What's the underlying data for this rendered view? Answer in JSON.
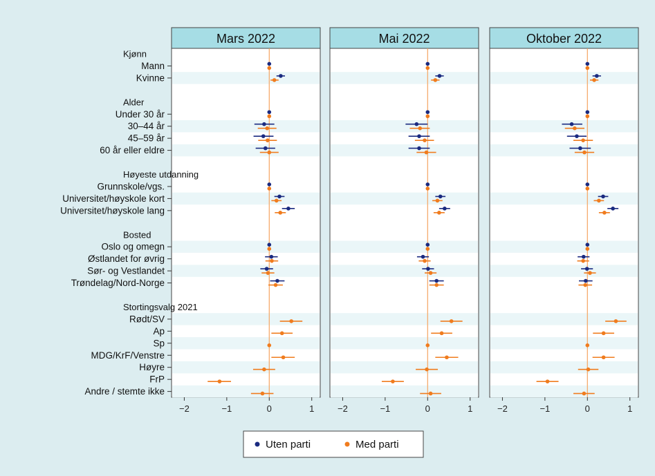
{
  "colors": {
    "background": "#dcedf0",
    "plot_bg": "#ffffff",
    "header_bg": "#a6dde5",
    "band": "#eaf6f8",
    "uten_parti": "#1a2a80",
    "med_parti": "#f07c1e",
    "zero_line": "#f5a460"
  },
  "chart_data": {
    "type": "scatter",
    "subtype": "coefficient-plot",
    "panels": [
      "Mars 2022",
      "Mai 2022",
      "Oktober 2022"
    ],
    "xlim": [
      -2.3,
      1.2
    ],
    "xticks": [
      -2,
      -1,
      0,
      1
    ],
    "xtick_labels": [
      "−2",
      "−1",
      "0",
      "1"
    ],
    "grid": false,
    "legend_position": "bottom",
    "legend": [
      "Uten parti",
      "Med parti"
    ],
    "rows": [
      {
        "label": "Kjønn",
        "kind": "header"
      },
      {
        "label": "Mann",
        "kind": "item"
      },
      {
        "label": "Kvinne",
        "kind": "item"
      },
      {
        "label": "",
        "kind": "gap"
      },
      {
        "label": "Alder",
        "kind": "header"
      },
      {
        "label": "Under 30 år",
        "kind": "item"
      },
      {
        "label": "30–44 år",
        "kind": "item"
      },
      {
        "label": "45–59 år",
        "kind": "item"
      },
      {
        "label": "60 år eller eldre",
        "kind": "item"
      },
      {
        "label": "",
        "kind": "gap"
      },
      {
        "label": "Høyeste utdanning",
        "kind": "header"
      },
      {
        "label": "Grunnskole/vgs.",
        "kind": "item"
      },
      {
        "label": "Universitet/høyskole kort",
        "kind": "item"
      },
      {
        "label": "Universitet/høyskole lang",
        "kind": "item"
      },
      {
        "label": "",
        "kind": "gap"
      },
      {
        "label": "Bosted",
        "kind": "header"
      },
      {
        "label": "Oslo og omegn",
        "kind": "item"
      },
      {
        "label": "Østlandet for øvrig",
        "kind": "item"
      },
      {
        "label": "Sør- og Vestlandet",
        "kind": "item"
      },
      {
        "label": "Trøndelag/Nord-Norge",
        "kind": "item"
      },
      {
        "label": "",
        "kind": "gap"
      },
      {
        "label": "Stortingsvalg 2021",
        "kind": "header"
      },
      {
        "label": "Rødt/SV",
        "kind": "item"
      },
      {
        "label": "Ap",
        "kind": "item"
      },
      {
        "label": "Sp",
        "kind": "item"
      },
      {
        "label": "MDG/KrF/Venstre",
        "kind": "item"
      },
      {
        "label": "Høyre",
        "kind": "item"
      },
      {
        "label": "FrP",
        "kind": "item"
      },
      {
        "label": "Andre / stemte ikke",
        "kind": "item"
      }
    ],
    "series": [
      {
        "name": "Uten parti",
        "panels": [
          {
            "Mann": [
              0,
              0,
              0
            ],
            "Kvinne": [
              0.27,
              0.17,
              0.37
            ],
            "Under 30 år": [
              0,
              0,
              0
            ],
            "30–44 år": [
              -0.12,
              -0.35,
              0.12
            ],
            "45–59 år": [
              -0.14,
              -0.37,
              0.1
            ],
            "60 år eller eldre": [
              -0.09,
              -0.32,
              0.14
            ],
            "Grunnskole/vgs.": [
              0,
              0,
              0
            ],
            "Universitet/høyskole kort": [
              0.24,
              0.12,
              0.36
            ],
            "Universitet/høyskole lang": [
              0.45,
              0.3,
              0.6
            ]
          },
          {
            "Mann": [
              0,
              0,
              0
            ],
            "Kvinne": [
              0.28,
              0.18,
              0.38
            ],
            "Under 30 år": [
              0,
              0,
              0
            ],
            "30–44 år": [
              -0.26,
              -0.52,
              0
            ],
            "45–59 år": [
              -0.2,
              -0.45,
              0.05
            ],
            "60 år eller eldre": [
              -0.2,
              -0.45,
              0.05
            ],
            "Grunnskole/vgs.": [
              0,
              0,
              0
            ],
            "Universitet/høyskole kort": [
              0.3,
              0.18,
              0.42
            ],
            "Universitet/høyskole lang": [
              0.4,
              0.27,
              0.53
            ]
          },
          {
            "Mann": [
              0,
              0,
              0
            ],
            "Kvinne": [
              0.22,
              0.12,
              0.32
            ],
            "Under 30 år": [
              0,
              0,
              0
            ],
            "30–44 år": [
              -0.37,
              -0.6,
              -0.12
            ],
            "45–59 år": [
              -0.25,
              -0.48,
              -0.02
            ],
            "60 år eller eldre": [
              -0.17,
              -0.42,
              0.08
            ],
            "Grunnskole/vgs.": [
              0,
              0,
              0
            ],
            "Universitet/høyskole kort": [
              0.37,
              0.25,
              0.49
            ],
            "Universitet/høyskole lang": [
              0.6,
              0.47,
              0.73
            ]
          }
        ]
      },
      {
        "name": "Med parti",
        "panels": [
          {
            "Mann": [
              0,
              0,
              0
            ],
            "Kvinne": [
              0.12,
              0.03,
              0.22
            ],
            "Under 30 år": [
              0,
              0,
              0
            ],
            "30–44 år": [
              -0.05,
              -0.27,
              0.17
            ],
            "45–59 år": [
              -0.04,
              -0.26,
              0.18
            ],
            "60 år eller eldre": [
              0,
              -0.22,
              0.22
            ],
            "Grunnskole/vgs.": [
              0,
              0,
              0
            ],
            "Universitet/høyskole kort": [
              0.17,
              0.05,
              0.29
            ],
            "Universitet/høyskole lang": [
              0.26,
              0.13,
              0.39
            ]
          },
          {
            "Mann": [
              0,
              0,
              0
            ],
            "Kvinne": [
              0.18,
              0.08,
              0.28
            ],
            "Under 30 år": [
              0,
              0,
              0
            ],
            "30–44 år": [
              -0.18,
              -0.42,
              0.05
            ],
            "45–59 år": [
              -0.07,
              -0.3,
              0.15
            ],
            "60 år eller eldre": [
              -0.03,
              -0.26,
              0.2
            ],
            "Grunnskole/vgs.": [
              0,
              0,
              0
            ],
            "Universitet/høyskole kort": [
              0.23,
              0.11,
              0.35
            ],
            "Universitet/høyskole lang": [
              0.27,
              0.14,
              0.4
            ]
          },
          {
            "Mann": [
              0,
              0,
              0
            ],
            "Kvinne": [
              0.16,
              0.06,
              0.26
            ],
            "Under 30 år": [
              0,
              0,
              0
            ],
            "30–44 år": [
              -0.3,
              -0.53,
              -0.07
            ],
            "45–59 år": [
              -0.1,
              -0.33,
              0.13
            ],
            "60 år eller eldre": [
              -0.07,
              -0.3,
              0.16
            ],
            "Grunnskole/vgs.": [
              0,
              0,
              0
            ],
            "Universitet/høyskole kort": [
              0.27,
              0.15,
              0.39
            ],
            "Universitet/høyskole lang": [
              0.4,
              0.27,
              0.53
            ]
          }
        ]
      }
    ],
    "bosted_and_party": {
      "Uten parti": [
        {
          "Oslo og omegn": [
            0,
            0,
            0
          ],
          "Østlandet for øvrig": [
            0.05,
            -0.1,
            0.2
          ],
          "Sør- og Vestlandet": [
            -0.06,
            -0.21,
            0.09
          ],
          "Trøndelag/Nord-Norge": [
            0.19,
            0.02,
            0.36
          ]
        },
        {
          "Oslo og omegn": [
            0,
            0,
            0
          ],
          "Østlandet for øvrig": [
            -0.11,
            -0.25,
            0.03
          ],
          "Sør- og Vestlandet": [
            0.01,
            -0.13,
            0.15
          ],
          "Trøndelag/Nord-Norge": [
            0.21,
            0.04,
            0.38
          ]
        },
        {
          "Oslo og omegn": [
            0,
            0,
            0
          ],
          "Østlandet for øvrig": [
            -0.09,
            -0.23,
            0.05
          ],
          "Sør- og Vestlandet": [
            -0.01,
            -0.15,
            0.13
          ],
          "Trøndelag/Nord-Norge": [
            -0.04,
            -0.2,
            0.12
          ]
        }
      ],
      "Med parti": [
        {
          "Oslo og omegn": [
            0,
            0,
            0
          ],
          "Østlandet for øvrig": [
            0.06,
            -0.09,
            0.21
          ],
          "Sør- og Vestlandet": [
            -0.03,
            -0.18,
            0.12
          ],
          "Trøndelag/Nord-Norge": [
            0.15,
            -0.02,
            0.32
          ],
          "Rødt/SV": [
            0.52,
            0.25,
            0.78
          ],
          "Ap": [
            0.3,
            0.05,
            0.55
          ],
          "Sp": [
            0,
            0,
            0
          ],
          "MDG/KrF/Venstre": [
            0.33,
            0.05,
            0.6
          ],
          "Høyre": [
            -0.12,
            -0.38,
            0.14
          ],
          "FrP": [
            -1.17,
            -1.45,
            -0.9
          ],
          "Andre / stemte ikke": [
            -0.16,
            -0.43,
            0.1
          ]
        },
        {
          "Oslo og omegn": [
            0,
            0,
            0
          ],
          "Østlandet for øvrig": [
            -0.07,
            -0.21,
            0.07
          ],
          "Sør- og Vestlandet": [
            0.07,
            -0.07,
            0.21
          ],
          "Trøndelag/Nord-Norge": [
            0.21,
            0.04,
            0.38
          ],
          "Rødt/SV": [
            0.56,
            0.3,
            0.82
          ],
          "Ap": [
            0.33,
            0.08,
            0.58
          ],
          "Sp": [
            0,
            0,
            0
          ],
          "MDG/KrF/Venstre": [
            0.45,
            0.18,
            0.72
          ],
          "Høyre": [
            -0.02,
            -0.28,
            0.24
          ],
          "FrP": [
            -0.82,
            -1.08,
            -0.56
          ],
          "Andre / stemte ikke": [
            0.07,
            -0.18,
            0.32
          ]
        },
        {
          "Oslo og omegn": [
            0,
            0,
            0
          ],
          "Østlandet for øvrig": [
            -0.1,
            -0.24,
            0.04
          ],
          "Sør- og Vestlandet": [
            0.06,
            -0.08,
            0.2
          ],
          "Trøndelag/Nord-Norge": [
            -0.05,
            -0.21,
            0.11
          ],
          "Rødt/SV": [
            0.67,
            0.42,
            0.92
          ],
          "Ap": [
            0.38,
            0.13,
            0.63
          ],
          "Sp": [
            0,
            0,
            0
          ],
          "MDG/KrF/Venstre": [
            0.38,
            0.12,
            0.64
          ],
          "Høyre": [
            0.02,
            -0.22,
            0.26
          ],
          "FrP": [
            -0.94,
            -1.2,
            -0.68
          ],
          "Andre / stemte ikke": [
            -0.08,
            -0.33,
            0.17
          ]
        }
      ]
    }
  }
}
